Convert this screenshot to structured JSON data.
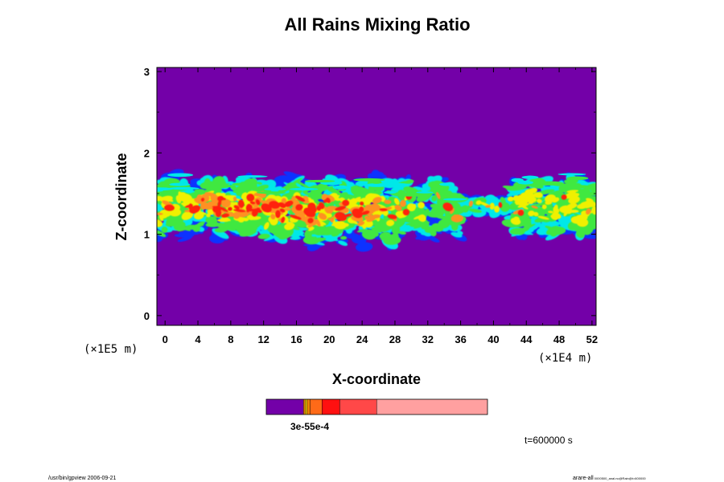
{
  "chart_data": {
    "type": "heatmap",
    "title": "All Rains Mixing Ratio",
    "xlabel": "X-coordinate",
    "ylabel": "Z-coordinate",
    "x_scale_label": "(×1E4 m)",
    "y_scale_label": "(×1E5 m)",
    "xlim": [
      -1,
      52.5
    ],
    "ylim": [
      -0.12,
      3.05
    ],
    "x_ticks": [
      0,
      4,
      8,
      12,
      16,
      20,
      24,
      28,
      32,
      36,
      40,
      44,
      48,
      52
    ],
    "y_ticks": [
      0,
      1,
      2,
      3
    ],
    "background_color": "#7300a8",
    "rain_band": {
      "z_bottom": 0.85,
      "z_top": 1.75,
      "x_start": -1,
      "x_end": 52.5
    },
    "colorbar": {
      "label": "3e-55e-4",
      "segments": [
        {
          "color": "#7300a8",
          "fraction": 0.168
        },
        {
          "color": "#e87f00",
          "fraction": 0.008
        },
        {
          "color": "#ffd800",
          "fraction": 0.008
        },
        {
          "color": "#e87f00",
          "fraction": 0.014
        },
        {
          "color": "#ff6a18",
          "fraction": 0.054
        },
        {
          "color": "#ff1010",
          "fraction": 0.08
        },
        {
          "color": "#ff4848",
          "fraction": 0.167
        },
        {
          "color": "#ffa0a0",
          "fraction": 0.501
        }
      ]
    },
    "time_label": "t=600000 s"
  },
  "footer": {
    "left": "/usr/bin/gpview 2006-09-21",
    "right": "arare-all",
    "right_sub": "  0000500_anal.nc@Rain@t=600000"
  },
  "colors": {
    "background": "#7300a8",
    "blue": "#1030ff",
    "cyan": "#00e8e8",
    "green": "#40e840",
    "yellow": "#f0f000",
    "orange": "#ff9020",
    "red": "#ff2010"
  }
}
